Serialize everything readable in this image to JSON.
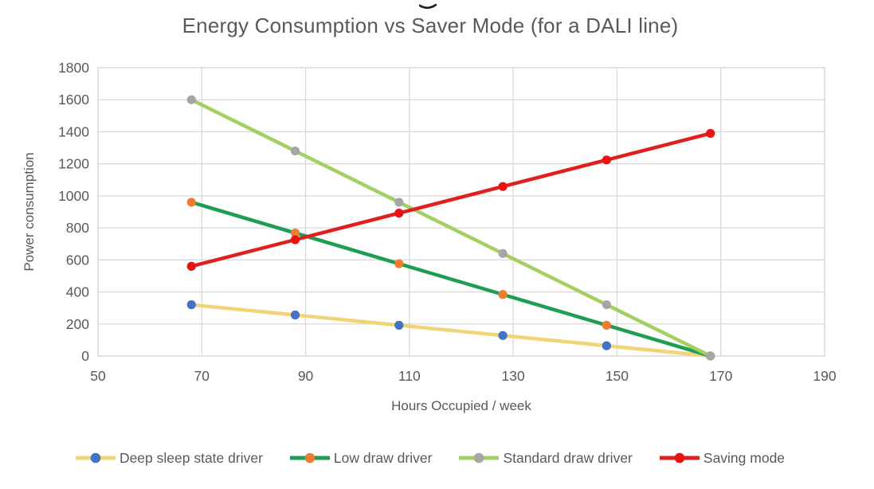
{
  "chart_data": {
    "type": "line",
    "title": "Energy Consumption vs Saver Mode (for a DALI line)",
    "xlabel": "Hours Occupied / week",
    "ylabel": "Power consumption",
    "xlim": [
      50,
      190
    ],
    "ylim": [
      0,
      1800
    ],
    "x_ticks": [
      50,
      70,
      90,
      110,
      130,
      150,
      170,
      190
    ],
    "y_ticks": [
      0,
      200,
      400,
      600,
      800,
      1000,
      1200,
      1400,
      1600,
      1800
    ],
    "grid": true,
    "legend_position": "bottom",
    "x": [
      68,
      88,
      108,
      128,
      148,
      168
    ],
    "series": [
      {
        "name": "Deep sleep state driver",
        "line_color": "#F2D478",
        "marker_color": "#4472C4",
        "values": [
          320,
          256,
          192,
          128,
          64,
          0
        ]
      },
      {
        "name": "Low draw driver",
        "line_color": "#1F9D55",
        "marker_color": "#ED7D31",
        "values": [
          960,
          768,
          576,
          384,
          192,
          0
        ]
      },
      {
        "name": "Standard draw driver",
        "line_color": "#A5CE63",
        "marker_color": "#A6A6A6",
        "values": [
          1600,
          1280,
          960,
          640,
          320,
          0
        ]
      },
      {
        "name": "Saving mode",
        "line_color": "#E02020",
        "marker_color": "#E81414",
        "values": [
          560,
          726,
          892,
          1058,
          1224,
          1390
        ]
      }
    ],
    "colors": {
      "grid": "#D9D9D9",
      "axis_text": "#595959"
    }
  }
}
